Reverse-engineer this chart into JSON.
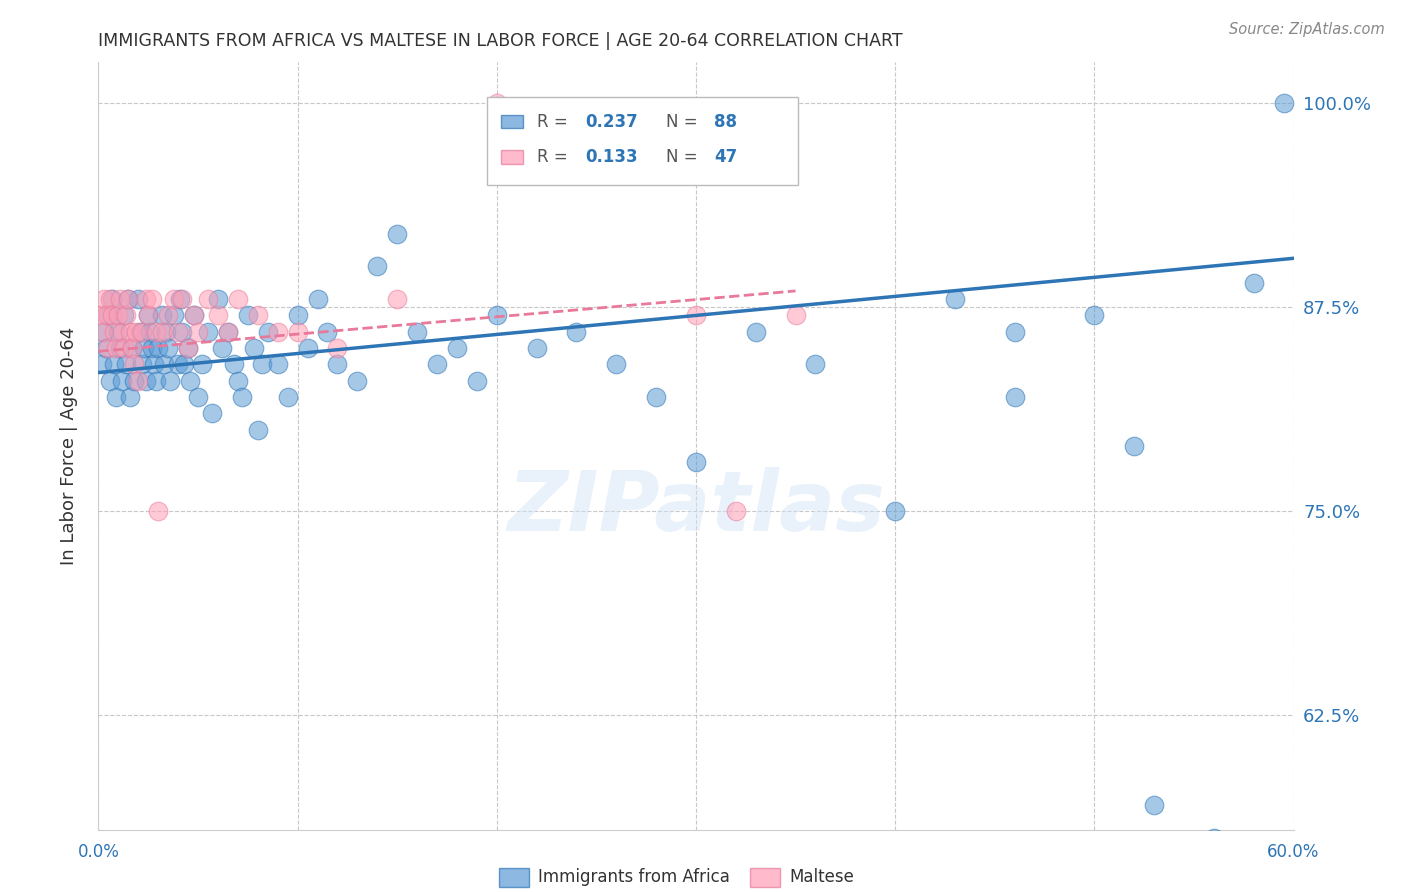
{
  "title": "IMMIGRANTS FROM AFRICA VS MALTESE IN LABOR FORCE | AGE 20-64 CORRELATION CHART",
  "source": "Source: ZipAtlas.com",
  "ylabel": "In Labor Force | Age 20-64",
  "xlim": [
    0.0,
    0.6
  ],
  "ylim": [
    0.555,
    1.025
  ],
  "yticks": [
    0.625,
    0.75,
    0.875,
    1.0
  ],
  "ytick_labels": [
    "62.5%",
    "75.0%",
    "87.5%",
    "100.0%"
  ],
  "color_blue": "#5B9BD5",
  "color_pink": "#FF9EB5",
  "color_blue_dark": "#2E75B6",
  "color_pink_dark": "#E8799A",
  "color_axis_label": "#2E75B6",
  "color_grid": "#C8C8C8",
  "color_title": "#333333",
  "watermark": "ZIPatlas",
  "blue_scatter_x": [
    0.002,
    0.003,
    0.004,
    0.005,
    0.006,
    0.007,
    0.008,
    0.009,
    0.01,
    0.011,
    0.012,
    0.013,
    0.014,
    0.015,
    0.016,
    0.017,
    0.018,
    0.02,
    0.021,
    0.022,
    0.023,
    0.024,
    0.025,
    0.026,
    0.027,
    0.028,
    0.029,
    0.03,
    0.032,
    0.033,
    0.034,
    0.035,
    0.036,
    0.038,
    0.04,
    0.041,
    0.042,
    0.043,
    0.045,
    0.046,
    0.048,
    0.05,
    0.052,
    0.055,
    0.057,
    0.06,
    0.062,
    0.065,
    0.068,
    0.07,
    0.072,
    0.075,
    0.078,
    0.08,
    0.082,
    0.085,
    0.09,
    0.095,
    0.1,
    0.105,
    0.11,
    0.115,
    0.12,
    0.13,
    0.14,
    0.15,
    0.16,
    0.17,
    0.18,
    0.19,
    0.2,
    0.22,
    0.24,
    0.26,
    0.28,
    0.3,
    0.33,
    0.36,
    0.4,
    0.43,
    0.46,
    0.5,
    0.53,
    0.56,
    0.58,
    0.595,
    0.52,
    0.46
  ],
  "blue_scatter_y": [
    0.84,
    0.86,
    0.85,
    0.87,
    0.83,
    0.88,
    0.84,
    0.82,
    0.86,
    0.85,
    0.83,
    0.87,
    0.84,
    0.88,
    0.82,
    0.85,
    0.83,
    0.88,
    0.86,
    0.84,
    0.85,
    0.83,
    0.87,
    0.86,
    0.85,
    0.84,
    0.83,
    0.85,
    0.87,
    0.84,
    0.86,
    0.85,
    0.83,
    0.87,
    0.84,
    0.88,
    0.86,
    0.84,
    0.85,
    0.83,
    0.87,
    0.82,
    0.84,
    0.86,
    0.81,
    0.88,
    0.85,
    0.86,
    0.84,
    0.83,
    0.82,
    0.87,
    0.85,
    0.8,
    0.84,
    0.86,
    0.84,
    0.82,
    0.87,
    0.85,
    0.88,
    0.86,
    0.84,
    0.83,
    0.9,
    0.92,
    0.86,
    0.84,
    0.85,
    0.83,
    0.87,
    0.85,
    0.86,
    0.84,
    0.82,
    0.78,
    0.86,
    0.84,
    0.75,
    0.88,
    0.86,
    0.87,
    0.57,
    0.55,
    0.89,
    1.0,
    0.79,
    0.82
  ],
  "pink_scatter_x": [
    0.001,
    0.002,
    0.003,
    0.004,
    0.005,
    0.006,
    0.007,
    0.008,
    0.009,
    0.01,
    0.011,
    0.012,
    0.013,
    0.014,
    0.015,
    0.016,
    0.017,
    0.018,
    0.019,
    0.02,
    0.022,
    0.024,
    0.025,
    0.027,
    0.029,
    0.03,
    0.032,
    0.035,
    0.038,
    0.04,
    0.042,
    0.045,
    0.048,
    0.05,
    0.055,
    0.06,
    0.065,
    0.07,
    0.08,
    0.09,
    0.1,
    0.12,
    0.15,
    0.2,
    0.3,
    0.32,
    0.35
  ],
  "pink_scatter_y": [
    0.87,
    0.86,
    0.88,
    0.87,
    0.85,
    0.88,
    0.87,
    0.86,
    0.85,
    0.87,
    0.88,
    0.86,
    0.85,
    0.87,
    0.88,
    0.86,
    0.85,
    0.84,
    0.86,
    0.83,
    0.86,
    0.88,
    0.87,
    0.88,
    0.86,
    0.75,
    0.86,
    0.87,
    0.88,
    0.86,
    0.88,
    0.85,
    0.87,
    0.86,
    0.88,
    0.87,
    0.86,
    0.88,
    0.87,
    0.86,
    0.86,
    0.85,
    0.88,
    1.0,
    0.87,
    0.75,
    0.87
  ],
  "blue_trend_x": [
    0.0,
    0.6
  ],
  "blue_trend_y": [
    0.835,
    0.905
  ],
  "pink_trend_x": [
    0.0,
    0.35
  ],
  "pink_trend_y": [
    0.848,
    0.885
  ]
}
